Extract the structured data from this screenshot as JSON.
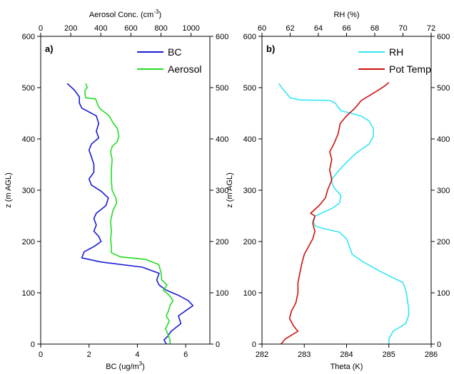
{
  "chart_data": [
    {
      "type": "line",
      "panel_label": "a)",
      "ylabel": "z (m AGL)",
      "ylim": [
        0,
        600
      ],
      "yticks": [
        0,
        100,
        200,
        300,
        400,
        500,
        600
      ],
      "right_yticks": [
        0,
        100,
        200,
        300,
        400,
        500,
        600
      ],
      "xlabel_bottom": "BC (ug/m",
      "xlabel_bottom_sup": "3",
      "xlabel_bottom_tail": ")",
      "xlim_bottom": [
        0,
        7
      ],
      "xticks_bottom": [
        0,
        2,
        4,
        6
      ],
      "xlabel_top": "Aerosol Conc. (cm",
      "xlabel_top_sup": "-3",
      "xlabel_top_tail": ")",
      "xlim_top": [
        0,
        1125
      ],
      "xticks_top": [
        0,
        200,
        400,
        600,
        800,
        1000
      ],
      "legend_position": "top-right",
      "series": [
        {
          "name": "BC",
          "axis": "bottom",
          "color": "#1a1ad6",
          "points": [
            [
              5.2,
              0
            ],
            [
              5.1,
              8
            ],
            [
              5.25,
              15
            ],
            [
              5.4,
              25
            ],
            [
              5.8,
              40
            ],
            [
              5.7,
              55
            ],
            [
              6.0,
              65
            ],
            [
              6.3,
              75
            ],
            [
              6.1,
              85
            ],
            [
              5.7,
              95
            ],
            [
              5.2,
              105
            ],
            [
              4.9,
              115
            ],
            [
              4.8,
              125
            ],
            [
              4.9,
              138
            ],
            [
              4.2,
              150
            ],
            [
              2.5,
              160
            ],
            [
              1.7,
              168
            ],
            [
              1.8,
              180
            ],
            [
              2.2,
              190
            ],
            [
              2.5,
              200
            ],
            [
              2.4,
              210
            ],
            [
              2.2,
              220
            ],
            [
              2.3,
              232
            ],
            [
              2.2,
              245
            ],
            [
              2.3,
              255
            ],
            [
              2.7,
              270
            ],
            [
              2.8,
              285
            ],
            [
              2.5,
              298
            ],
            [
              2.1,
              310
            ],
            [
              2.0,
              322
            ],
            [
              2.2,
              335
            ],
            [
              2.2,
              350
            ],
            [
              2.1,
              365
            ],
            [
              2.0,
              378
            ],
            [
              2.1,
              390
            ],
            [
              2.4,
              402
            ],
            [
              2.3,
              415
            ],
            [
              2.4,
              430
            ],
            [
              2.3,
              445
            ],
            [
              1.7,
              460
            ],
            [
              1.6,
              470
            ],
            [
              1.6,
              482
            ],
            [
              1.4,
              495
            ],
            [
              1.1,
              508
            ]
          ]
        },
        {
          "name": "Aerosol",
          "axis": "top",
          "color": "#22dd22",
          "points": [
            [
              860,
              0
            ],
            [
              860,
              8
            ],
            [
              845,
              20
            ],
            [
              830,
              30
            ],
            [
              855,
              45
            ],
            [
              835,
              55
            ],
            [
              850,
              65
            ],
            [
              860,
              75
            ],
            [
              880,
              85
            ],
            [
              855,
              95
            ],
            [
              815,
              105
            ],
            [
              840,
              115
            ],
            [
              805,
              125
            ],
            [
              800,
              140
            ],
            [
              785,
              155
            ],
            [
              700,
              165
            ],
            [
              530,
              170
            ],
            [
              470,
              178
            ],
            [
              470,
              190
            ],
            [
              465,
              205
            ],
            [
              470,
              220
            ],
            [
              465,
              240
            ],
            [
              480,
              260
            ],
            [
              505,
              275
            ],
            [
              500,
              285
            ],
            [
              475,
              300
            ],
            [
              470,
              320
            ],
            [
              470,
              340
            ],
            [
              475,
              360
            ],
            [
              465,
              375
            ],
            [
              475,
              385
            ],
            [
              510,
              395
            ],
            [
              520,
              405
            ],
            [
              510,
              420
            ],
            [
              480,
              432
            ],
            [
              455,
              445
            ],
            [
              390,
              460
            ],
            [
              375,
              470
            ],
            [
              365,
              478
            ],
            [
              300,
              480
            ],
            [
              295,
              488
            ],
            [
              295,
              495
            ],
            [
              310,
              500
            ],
            [
              300,
              508
            ]
          ]
        }
      ]
    },
    {
      "type": "line",
      "panel_label": "b)",
      "ylabel": "z (m AGL)",
      "ylim": [
        0,
        600
      ],
      "yticks": [
        0,
        100,
        200,
        300,
        400,
        500,
        600
      ],
      "right_yticks": [
        0,
        100,
        200,
        300,
        400,
        500,
        600
      ],
      "xlabel_bottom": "Theta (K)",
      "xlim_bottom": [
        282,
        286
      ],
      "xticks_bottom": [
        282,
        283,
        284,
        285,
        286
      ],
      "xlabel_top": "RH (%)",
      "xlim_top": [
        60,
        72
      ],
      "xticks_top": [
        60,
        62,
        64,
        66,
        68,
        70,
        72
      ],
      "legend_position": "top-right",
      "series": [
        {
          "name": "RH",
          "axis": "top",
          "color": "#33e6f2",
          "points": [
            [
              69.0,
              0
            ],
            [
              69.0,
              10
            ],
            [
              69.3,
              25
            ],
            [
              70.2,
              40
            ],
            [
              70.4,
              55
            ],
            [
              70.4,
              70
            ],
            [
              70.3,
              90
            ],
            [
              70.2,
              105
            ],
            [
              70.0,
              120
            ],
            [
              68.5,
              140
            ],
            [
              67.2,
              160
            ],
            [
              66.4,
              175
            ],
            [
              66.2,
              190
            ],
            [
              66.0,
              205
            ],
            [
              65.5,
              218
            ],
            [
              64.4,
              225
            ],
            [
              63.8,
              230
            ],
            [
              63.6,
              240
            ],
            [
              63.8,
              250
            ],
            [
              65.0,
              265
            ],
            [
              65.5,
              275
            ],
            [
              65.6,
              290
            ],
            [
              65.1,
              305
            ],
            [
              64.9,
              320
            ],
            [
              65.5,
              340
            ],
            [
              66.2,
              360
            ],
            [
              66.8,
              375
            ],
            [
              67.6,
              390
            ],
            [
              67.9,
              405
            ],
            [
              67.9,
              420
            ],
            [
              67.6,
              435
            ],
            [
              67.0,
              445
            ],
            [
              66.3,
              450
            ],
            [
              65.6,
              455
            ],
            [
              65.4,
              462
            ],
            [
              65.2,
              470
            ],
            [
              64.8,
              475
            ],
            [
              62.7,
              476
            ],
            [
              62.0,
              480
            ],
            [
              61.7,
              490
            ],
            [
              61.4,
              500
            ],
            [
              61.2,
              508
            ]
          ]
        },
        {
          "name": "Pot Temp",
          "axis": "bottom",
          "color": "#cc1111",
          "points": [
            [
              282.45,
              0
            ],
            [
              282.55,
              10
            ],
            [
              282.85,
              25
            ],
            [
              282.75,
              35
            ],
            [
              282.65,
              50
            ],
            [
              282.7,
              65
            ],
            [
              282.8,
              80
            ],
            [
              282.85,
              100
            ],
            [
              282.85,
              120
            ],
            [
              282.9,
              140
            ],
            [
              282.95,
              160
            ],
            [
              283.0,
              175
            ],
            [
              283.1,
              190
            ],
            [
              283.2,
              205
            ],
            [
              283.25,
              220
            ],
            [
              283.2,
              235
            ],
            [
              283.25,
              250
            ],
            [
              283.15,
              255
            ],
            [
              283.35,
              270
            ],
            [
              283.5,
              285
            ],
            [
              283.55,
              300
            ],
            [
              283.65,
              320
            ],
            [
              283.6,
              340
            ],
            [
              283.65,
              360
            ],
            [
              283.6,
              375
            ],
            [
              283.7,
              390
            ],
            [
              283.8,
              410
            ],
            [
              283.85,
              430
            ],
            [
              284.0,
              445
            ],
            [
              284.2,
              460
            ],
            [
              284.35,
              475
            ],
            [
              284.55,
              485
            ],
            [
              284.75,
              495
            ],
            [
              284.9,
              503
            ],
            [
              285.0,
              510
            ]
          ]
        }
      ]
    }
  ]
}
